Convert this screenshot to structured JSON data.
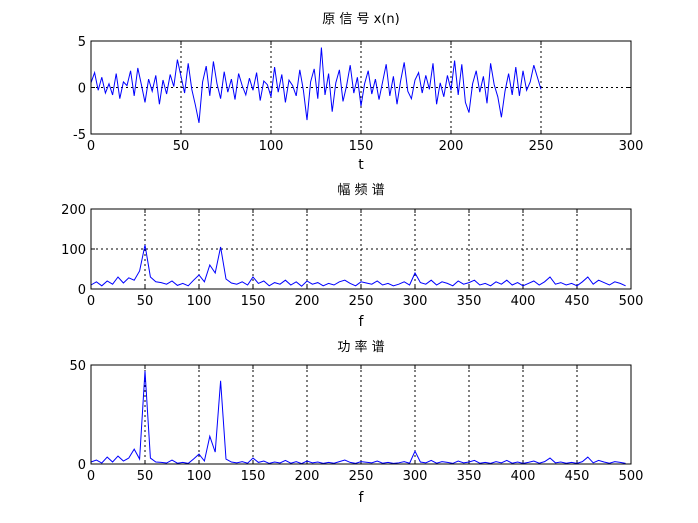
{
  "chart_data": [
    {
      "type": "line",
      "title": "原 信 号 x(n)",
      "xlabel": "t",
      "ylabel": "",
      "xlim": [
        0,
        300
      ],
      "ylim": [
        -5,
        5
      ],
      "xticks": [
        0,
        50,
        100,
        150,
        200,
        250,
        300
      ],
      "yticks": [
        -5,
        0,
        5
      ],
      "grid": true,
      "series": [
        {
          "color": "#0000ff",
          "x": [
            0,
            2,
            4,
            6,
            8,
            10,
            12,
            14,
            16,
            18,
            20,
            22,
            24,
            26,
            28,
            30,
            32,
            34,
            36,
            38,
            40,
            42,
            44,
            46,
            48,
            50,
            52,
            54,
            56,
            58,
            60,
            62,
            64,
            66,
            68,
            70,
            72,
            74,
            76,
            78,
            80,
            82,
            84,
            86,
            88,
            90,
            92,
            94,
            96,
            98,
            100,
            102,
            104,
            106,
            108,
            110,
            112,
            114,
            116,
            118,
            120,
            122,
            124,
            126,
            128,
            130,
            132,
            134,
            136,
            138,
            140,
            142,
            144,
            146,
            148,
            150,
            152,
            154,
            156,
            158,
            160,
            162,
            164,
            166,
            168,
            170,
            172,
            174,
            176,
            178,
            180,
            182,
            184,
            186,
            188,
            190,
            192,
            194,
            196,
            198,
            200,
            202,
            204,
            206,
            208,
            210,
            212,
            214,
            216,
            218,
            220,
            222,
            224,
            226,
            228,
            230,
            232,
            234,
            236,
            238,
            240,
            242,
            244,
            246,
            248,
            250
          ],
          "values": [
            0.5,
            1.6,
            -0.3,
            1.1,
            -0.6,
            0.4,
            -0.8,
            1.5,
            -1.2,
            0.6,
            0.2,
            1.8,
            -0.9,
            2.1,
            0.3,
            -1.6,
            0.9,
            -0.4,
            1.3,
            -1.8,
            0.8,
            -0.7,
            1.4,
            0.1,
            3.0,
            1.2,
            -0.6,
            2.6,
            -0.2,
            -1.9,
            -3.8,
            0.6,
            2.3,
            -0.9,
            2.8,
            0.4,
            -1.2,
            1.7,
            -0.5,
            0.9,
            -1.3,
            1.5,
            0.2,
            -0.8,
            1.0,
            -0.3,
            1.6,
            -1.4,
            0.7,
            0.3,
            -1.0,
            2.2,
            -0.5,
            1.4,
            -1.6,
            0.8,
            0.2,
            -0.9,
            1.9,
            -0.3,
            -3.5,
            0.6,
            2.0,
            -1.2,
            4.3,
            -0.8,
            1.5,
            -2.6,
            0.5,
            1.9,
            -1.5,
            0.2,
            2.4,
            -0.6,
            1.1,
            -2.0,
            0.4,
            1.8,
            -0.7,
            0.9,
            -1.3,
            0.6,
            2.5,
            -0.9,
            1.2,
            -1.8,
            0.7,
            2.7,
            -0.4,
            -1.2,
            0.8,
            1.6,
            -0.6,
            1.3,
            -0.2,
            2.6,
            -1.8,
            0.5,
            -1.0,
            1.3,
            -0.3,
            2.9,
            -0.8,
            2.5,
            -1.6,
            -2.7,
            0.4,
            1.8,
            -0.5,
            1.2,
            -1.7,
            2.6,
            0.3,
            -1.0,
            -3.2,
            -0.4,
            1.5,
            -0.8,
            2.2,
            -0.9,
            1.8,
            -0.3,
            0.6,
            2.4,
            1.1,
            -0.2
          ]
        }
      ]
    },
    {
      "type": "line",
      "title": "幅 频 谱",
      "xlabel": "f",
      "ylabel": "",
      "xlim": [
        0,
        500
      ],
      "ylim": [
        0,
        200
      ],
      "xticks": [
        0,
        50,
        100,
        150,
        200,
        250,
        300,
        350,
        400,
        450,
        500
      ],
      "yticks": [
        0,
        100,
        200
      ],
      "grid": true,
      "series": [
        {
          "color": "#0000ff",
          "x": [
            0,
            5,
            10,
            15,
            20,
            25,
            30,
            35,
            40,
            45,
            50,
            55,
            60,
            65,
            70,
            75,
            80,
            85,
            90,
            95,
            100,
            105,
            110,
            115,
            120,
            125,
            130,
            135,
            140,
            145,
            150,
            155,
            160,
            165,
            170,
            175,
            180,
            185,
            190,
            195,
            200,
            205,
            210,
            215,
            220,
            225,
            230,
            235,
            240,
            245,
            250,
            255,
            260,
            265,
            270,
            275,
            280,
            285,
            290,
            295,
            300,
            305,
            310,
            315,
            320,
            325,
            330,
            335,
            340,
            345,
            350,
            355,
            360,
            365,
            370,
            375,
            380,
            385,
            390,
            395,
            400,
            405,
            410,
            415,
            420,
            425,
            430,
            435,
            440,
            445,
            450,
            455,
            460,
            465,
            470,
            475,
            480,
            485,
            490,
            495
          ],
          "values": [
            10,
            18,
            8,
            20,
            12,
            30,
            15,
            28,
            22,
            45,
            110,
            30,
            18,
            16,
            12,
            20,
            9,
            14,
            8,
            22,
            35,
            18,
            60,
            40,
            105,
            25,
            15,
            12,
            18,
            10,
            30,
            14,
            20,
            8,
            16,
            12,
            22,
            10,
            18,
            7,
            20,
            12,
            16,
            8,
            14,
            10,
            18,
            22,
            14,
            8,
            18,
            15,
            12,
            20,
            10,
            14,
            8,
            12,
            18,
            10,
            40,
            16,
            12,
            22,
            10,
            18,
            14,
            8,
            20,
            12,
            16,
            22,
            10,
            14,
            8,
            18,
            12,
            22,
            10,
            16,
            8,
            14,
            20,
            10,
            18,
            30,
            12,
            16,
            10,
            14,
            8,
            18,
            30,
            12,
            22,
            16,
            10,
            18,
            14,
            8
          ]
        }
      ]
    },
    {
      "type": "line",
      "title": "功 率 谱",
      "xlabel": "f",
      "ylabel": "",
      "xlim": [
        0,
        500
      ],
      "ylim": [
        0,
        50
      ],
      "xticks": [
        0,
        50,
        100,
        150,
        200,
        250,
        300,
        350,
        400,
        450,
        500
      ],
      "yticks": [
        0,
        50
      ],
      "grid": true,
      "series": [
        {
          "color": "#0000ff",
          "x": [
            0,
            5,
            10,
            15,
            20,
            25,
            30,
            35,
            40,
            45,
            50,
            55,
            60,
            65,
            70,
            75,
            80,
            85,
            90,
            95,
            100,
            105,
            110,
            115,
            120,
            125,
            130,
            135,
            140,
            145,
            150,
            155,
            160,
            165,
            170,
            175,
            180,
            185,
            190,
            195,
            200,
            205,
            210,
            215,
            220,
            225,
            230,
            235,
            240,
            245,
            250,
            255,
            260,
            265,
            270,
            275,
            280,
            285,
            290,
            295,
            300,
            305,
            310,
            315,
            320,
            325,
            330,
            335,
            340,
            345,
            350,
            355,
            360,
            365,
            370,
            375,
            380,
            385,
            390,
            395,
            400,
            405,
            410,
            415,
            420,
            425,
            430,
            435,
            440,
            445,
            450,
            455,
            460,
            465,
            470,
            475,
            480,
            485,
            490,
            495
          ],
          "values": [
            1.0,
            2.0,
            0.5,
            3.5,
            1.0,
            4.0,
            1.5,
            3.0,
            7.5,
            2.5,
            47.0,
            3.0,
            1.0,
            0.8,
            0.5,
            2.0,
            0.4,
            0.8,
            0.3,
            2.5,
            5.0,
            1.5,
            14.0,
            6.0,
            42.0,
            2.5,
            1.0,
            0.6,
            1.2,
            0.4,
            3.0,
            0.8,
            1.5,
            0.3,
            1.0,
            0.5,
            1.8,
            0.4,
            1.2,
            0.2,
            1.5,
            0.6,
            1.0,
            0.3,
            0.8,
            0.4,
            1.2,
            2.0,
            0.8,
            0.3,
            1.2,
            0.9,
            0.6,
            1.5,
            0.4,
            0.8,
            0.3,
            0.6,
            1.2,
            0.4,
            6.5,
            1.0,
            0.6,
            1.8,
            0.4,
            1.2,
            0.8,
            0.3,
            1.5,
            0.6,
            1.0,
            1.8,
            0.4,
            0.8,
            0.3,
            1.2,
            0.6,
            1.8,
            0.4,
            1.0,
            0.3,
            0.8,
            1.5,
            0.4,
            1.2,
            3.0,
            0.6,
            1.0,
            0.4,
            0.8,
            0.3,
            1.2,
            3.5,
            0.6,
            1.8,
            1.0,
            0.4,
            1.2,
            0.8,
            0.3
          ]
        }
      ]
    }
  ]
}
